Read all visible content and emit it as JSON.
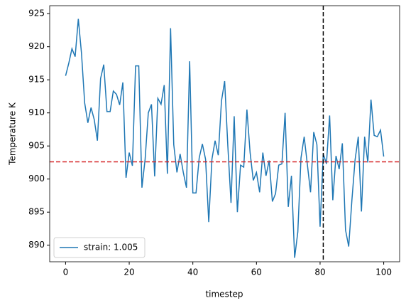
{
  "chart_data": {
    "type": "line",
    "x_label": "timestep",
    "y_label": "Temperature K",
    "x": [
      0,
      1,
      2,
      3,
      4,
      5,
      6,
      7,
      8,
      9,
      10,
      11,
      12,
      13,
      14,
      15,
      16,
      17,
      18,
      19,
      20,
      21,
      22,
      23,
      24,
      25,
      26,
      27,
      28,
      29,
      30,
      31,
      32,
      33,
      34,
      35,
      36,
      37,
      38,
      39,
      40,
      41,
      42,
      43,
      44,
      45,
      46,
      47,
      48,
      49,
      50,
      51,
      52,
      53,
      54,
      55,
      56,
      57,
      58,
      59,
      60,
      61,
      62,
      63,
      64,
      65,
      66,
      67,
      68,
      69,
      70,
      71,
      72,
      73,
      74,
      75,
      76,
      77,
      78,
      79,
      80,
      81,
      82,
      83,
      84,
      85,
      86,
      87,
      88,
      89,
      90,
      91,
      92,
      93,
      94,
      95,
      96,
      97,
      98,
      99,
      100
    ],
    "series": [
      {
        "name": "strain: 1.005",
        "color": "#1f77b4",
        "values": [
          915.6,
          917.5,
          919.7,
          918.5,
          924.2,
          919.0,
          911.5,
          908.5,
          910.8,
          909.0,
          905.8,
          915.2,
          917.3,
          910.2,
          910.2,
          913.3,
          912.8,
          911.2,
          914.6,
          900.2,
          904.0,
          902.0,
          917.1,
          917.1,
          898.7,
          903.0,
          910.0,
          911.3,
          900.4,
          912.2,
          911.3,
          914.2,
          900.8,
          922.8,
          905.2,
          901.0,
          903.8,
          901.0,
          898.7,
          917.8,
          897.9,
          897.9,
          903.2,
          905.3,
          903.0,
          893.5,
          903.0,
          905.8,
          903.6,
          911.8,
          914.8,
          905.0,
          896.4,
          909.5,
          895.0,
          902.1,
          901.8,
          910.5,
          904.0,
          899.8,
          901.0,
          898.0,
          904.0,
          900.5,
          902.8,
          896.6,
          897.8,
          902.1,
          902.3,
          910.0,
          895.8,
          900.5,
          888.1,
          892.0,
          903.2,
          906.4,
          902.2,
          898.0,
          907.1,
          905.2,
          892.8,
          903.8,
          902.3,
          909.6,
          896.8,
          903.5,
          901.5,
          905.4,
          892.3,
          889.8,
          896.8,
          902.9,
          906.4,
          895.1,
          906.4,
          902.5,
          912.0,
          906.6,
          906.4,
          907.4,
          903.4
        ]
      }
    ],
    "hlines": [
      {
        "value": 902.6,
        "color": "#d62728"
      }
    ],
    "vlines": [
      {
        "value": 81,
        "color": "#000000"
      }
    ],
    "xlim": [
      -5,
      105
    ],
    "xticks": [
      0,
      20,
      40,
      60,
      80,
      100
    ],
    "ylim": [
      887.5,
      926.2
    ],
    "yticks": [
      890,
      895,
      900,
      905,
      910,
      915,
      920,
      925
    ],
    "legend_position": "lower left",
    "grid": false
  }
}
